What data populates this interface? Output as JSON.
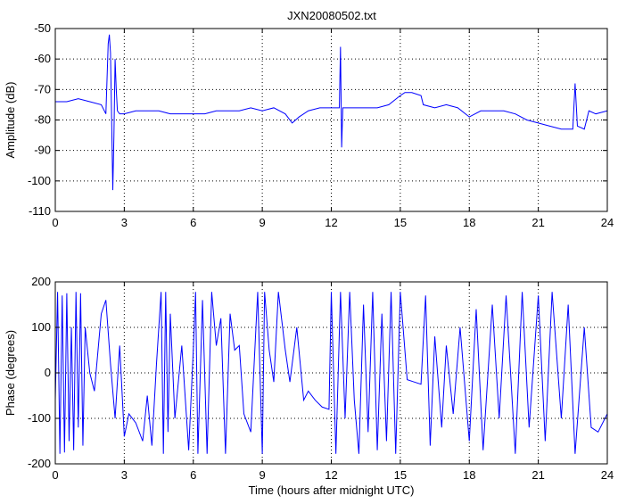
{
  "chart_data": [
    {
      "type": "line",
      "title": "JXN20080502.txt",
      "xlabel": "",
      "ylabel": "Amplitude (dB)",
      "xlim": [
        0,
        24
      ],
      "ylim": [
        -110,
        -50
      ],
      "xticks": [
        0,
        3,
        6,
        9,
        12,
        15,
        18,
        21,
        24
      ],
      "yticks": [
        -110,
        -100,
        -90,
        -80,
        -70,
        -60,
        -50
      ],
      "grid": true,
      "line_color": "#0000ff",
      "series": [
        {
          "name": "",
          "x": [
            0,
            0.5,
            1.0,
            1.5,
            2.0,
            2.2,
            2.3,
            2.35,
            2.4,
            2.45,
            2.5,
            2.55,
            2.6,
            2.65,
            2.7,
            2.8,
            3.0,
            3.5,
            4.0,
            4.5,
            5.0,
            5.5,
            6.0,
            6.5,
            7.0,
            7.5,
            8.0,
            8.5,
            9.0,
            9.5,
            10.0,
            10.3,
            10.6,
            11.0,
            11.5,
            12.0,
            12.35,
            12.4,
            12.45,
            12.5,
            12.6,
            13.0,
            13.5,
            14.0,
            14.5,
            15.0,
            15.2,
            15.5,
            15.9,
            16.0,
            16.5,
            17.0,
            17.5,
            18.0,
            18.5,
            19.0,
            19.5,
            20.0,
            20.5,
            21.0,
            21.5,
            22.0,
            22.5,
            22.6,
            22.7,
            23.0,
            23.2,
            23.5,
            24.0
          ],
          "y": [
            -74,
            -74,
            -73,
            -74,
            -75,
            -78,
            -55,
            -52,
            -58,
            -80,
            -103,
            -85,
            -60,
            -70,
            -77,
            -78,
            -78,
            -77,
            -77,
            -77,
            -78,
            -78,
            -78,
            -78,
            -77,
            -77,
            -77,
            -76,
            -77,
            -76,
            -78,
            -81,
            -79,
            -77,
            -76,
            -76,
            -76,
            -56,
            -89,
            -76,
            -76,
            -76,
            -76,
            -76,
            -75,
            -72,
            -71,
            -71,
            -72,
            -75,
            -76,
            -75,
            -76,
            -79,
            -77,
            -77,
            -77,
            -78,
            -80,
            -81,
            -82,
            -83,
            -83,
            -68,
            -82,
            -83,
            -77,
            -78,
            -77
          ]
        }
      ]
    },
    {
      "type": "line",
      "title": "",
      "xlabel": "Time (hours after midnight UTC)",
      "ylabel": "Phase (degrees)",
      "xlim": [
        0,
        24
      ],
      "ylim": [
        -200,
        200
      ],
      "xticks": [
        0,
        3,
        6,
        9,
        12,
        15,
        18,
        21,
        24
      ],
      "yticks": [
        -200,
        -100,
        0,
        100,
        200
      ],
      "grid": true,
      "line_color": "#0000ff",
      "series": [
        {
          "name": "",
          "x": [
            0,
            0.1,
            0.2,
            0.3,
            0.4,
            0.5,
            0.6,
            0.7,
            0.8,
            0.9,
            1.0,
            1.1,
            1.2,
            1.3,
            1.5,
            1.7,
            2.0,
            2.2,
            2.4,
            2.6,
            2.8,
            3.0,
            3.2,
            3.5,
            3.8,
            4.0,
            4.2,
            4.4,
            4.6,
            4.7,
            4.8,
            4.9,
            5.0,
            5.2,
            5.5,
            5.8,
            6.0,
            6.1,
            6.2,
            6.4,
            6.6,
            6.8,
            7.0,
            7.2,
            7.4,
            7.6,
            7.8,
            8.0,
            8.2,
            8.5,
            8.8,
            9.0,
            9.1,
            9.3,
            9.5,
            9.7,
            10.0,
            10.2,
            10.5,
            10.8,
            11.0,
            11.3,
            11.6,
            11.9,
            12.0,
            12.2,
            12.4,
            12.6,
            12.8,
            13.0,
            13.2,
            13.4,
            13.6,
            13.8,
            14.0,
            14.2,
            14.4,
            14.6,
            14.8,
            15.0,
            15.3,
            15.6,
            15.9,
            16.1,
            16.3,
            16.5,
            16.8,
            17.0,
            17.3,
            17.6,
            18.0,
            18.3,
            18.6,
            19.0,
            19.3,
            19.6,
            20.0,
            20.3,
            20.6,
            21.0,
            21.3,
            21.6,
            22.0,
            22.3,
            22.6,
            23.0,
            23.3,
            23.6,
            24.0
          ],
          "y": [
            -60,
            178,
            -178,
            170,
            -175,
            175,
            -150,
            100,
            -170,
            178,
            -120,
            175,
            -160,
            100,
            0,
            -40,
            130,
            160,
            20,
            -100,
            60,
            -140,
            -90,
            -110,
            -150,
            -50,
            -160,
            20,
            178,
            -178,
            178,
            -130,
            130,
            -100,
            60,
            -170,
            50,
            178,
            -178,
            160,
            -178,
            178,
            60,
            120,
            -178,
            130,
            50,
            60,
            -90,
            -130,
            178,
            -178,
            178,
            50,
            -20,
            178,
            50,
            -20,
            100,
            -60,
            -40,
            -60,
            -75,
            -80,
            178,
            -178,
            178,
            -100,
            178,
            -60,
            -178,
            150,
            -130,
            178,
            -170,
            130,
            -150,
            178,
            -178,
            178,
            -15,
            -20,
            -25,
            170,
            -160,
            80,
            -120,
            60,
            -90,
            100,
            -150,
            140,
            -170,
            150,
            -100,
            170,
            -178,
            178,
            -120,
            170,
            -150,
            178,
            -100,
            150,
            -178,
            100,
            -120,
            -130,
            -90
          ]
        }
      ]
    }
  ]
}
